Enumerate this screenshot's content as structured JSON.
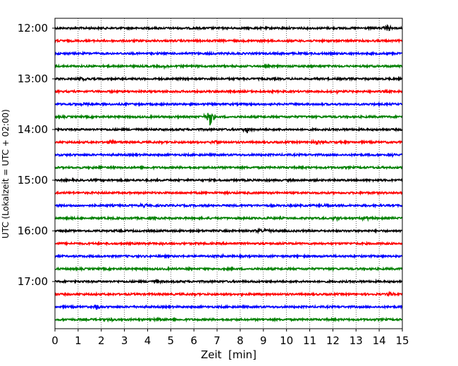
{
  "chart_data": {
    "type": "line",
    "title": "",
    "xlabel": "Zeit  [min]",
    "ylabel": "UTC (Lokalzeit = UTC + 02:00)",
    "xlim": [
      0,
      15
    ],
    "x_ticks": [
      0,
      1,
      2,
      3,
      4,
      5,
      6,
      7,
      8,
      9,
      10,
      11,
      12,
      13,
      14,
      15
    ],
    "y_tick_labels": [
      "12:00",
      "13:00",
      "14:00",
      "15:00",
      "16:00",
      "17:00"
    ],
    "grid": "vertical dotted",
    "trace_interval_minutes": 15,
    "colors": [
      "#000000",
      "#ff0000",
      "#0000ff",
      "#008000"
    ],
    "series": [
      {
        "start": "12:00",
        "color": "#000000",
        "events": [
          {
            "x": 14.4,
            "amp": 0.6
          }
        ]
      },
      {
        "start": "12:15",
        "color": "#ff0000",
        "events": []
      },
      {
        "start": "12:30",
        "color": "#0000ff",
        "events": []
      },
      {
        "start": "12:45",
        "color": "#008000",
        "events": [
          {
            "x": 4.8,
            "amp": 0.3
          }
        ]
      },
      {
        "start": "13:00",
        "color": "#000000",
        "events": [
          {
            "x": 1.2,
            "amp": 0.3
          }
        ]
      },
      {
        "start": "13:15",
        "color": "#ff0000",
        "events": [
          {
            "x": 12.2,
            "amp": 0.25
          }
        ]
      },
      {
        "start": "13:30",
        "color": "#0000ff",
        "events": [
          {
            "x": 1.3,
            "amp": 0.35
          }
        ]
      },
      {
        "start": "13:45",
        "color": "#008000",
        "events": [
          {
            "x": 6.7,
            "amp": 1.9
          }
        ]
      },
      {
        "start": "14:00",
        "color": "#000000",
        "events": [
          {
            "x": 8.3,
            "amp": 0.5
          }
        ]
      },
      {
        "start": "14:15",
        "color": "#ff0000",
        "events": [
          {
            "x": 2.5,
            "amp": 0.4
          },
          {
            "x": 6.9,
            "amp": 0.45
          },
          {
            "x": 11.3,
            "amp": 0.5
          }
        ]
      },
      {
        "start": "14:30",
        "color": "#0000ff",
        "events": [
          {
            "x": 14.5,
            "amp": 0.3
          }
        ]
      },
      {
        "start": "14:45",
        "color": "#008000",
        "events": [
          {
            "x": 1.9,
            "amp": 0.35
          }
        ]
      },
      {
        "start": "15:00",
        "color": "#000000",
        "events": []
      },
      {
        "start": "15:15",
        "color": "#ff0000",
        "events": []
      },
      {
        "start": "15:30",
        "color": "#0000ff",
        "events": [
          {
            "x": 3.9,
            "amp": 0.45
          },
          {
            "x": 11.8,
            "amp": 0.25
          }
        ]
      },
      {
        "start": "15:45",
        "color": "#008000",
        "events": [
          {
            "x": 12.1,
            "amp": 0.45
          },
          {
            "x": 13.4,
            "amp": 0.4
          }
        ]
      },
      {
        "start": "16:00",
        "color": "#000000",
        "events": [
          {
            "x": 8.8,
            "amp": 0.35
          },
          {
            "x": 9.1,
            "amp": 0.3
          }
        ]
      },
      {
        "start": "16:15",
        "color": "#ff0000",
        "events": [
          {
            "x": 4.7,
            "amp": 0.25
          }
        ]
      },
      {
        "start": "16:30",
        "color": "#0000ff",
        "events": [
          {
            "x": 7.2,
            "amp": 0.25
          }
        ]
      },
      {
        "start": "16:45",
        "color": "#008000",
        "events": [
          {
            "x": 5.8,
            "amp": 0.4
          }
        ]
      },
      {
        "start": "17:00",
        "color": "#000000",
        "events": [
          {
            "x": 4.4,
            "amp": 0.45
          }
        ]
      },
      {
        "start": "17:15",
        "color": "#ff0000",
        "events": [
          {
            "x": 14.5,
            "amp": 0.35
          }
        ]
      },
      {
        "start": "17:30",
        "color": "#0000ff",
        "events": [
          {
            "x": 1.8,
            "amp": 0.35
          }
        ]
      },
      {
        "start": "17:45",
        "color": "#008000",
        "events": [
          {
            "x": 2.4,
            "amp": 0.3
          },
          {
            "x": 4.5,
            "amp": 0.25
          }
        ]
      }
    ]
  }
}
